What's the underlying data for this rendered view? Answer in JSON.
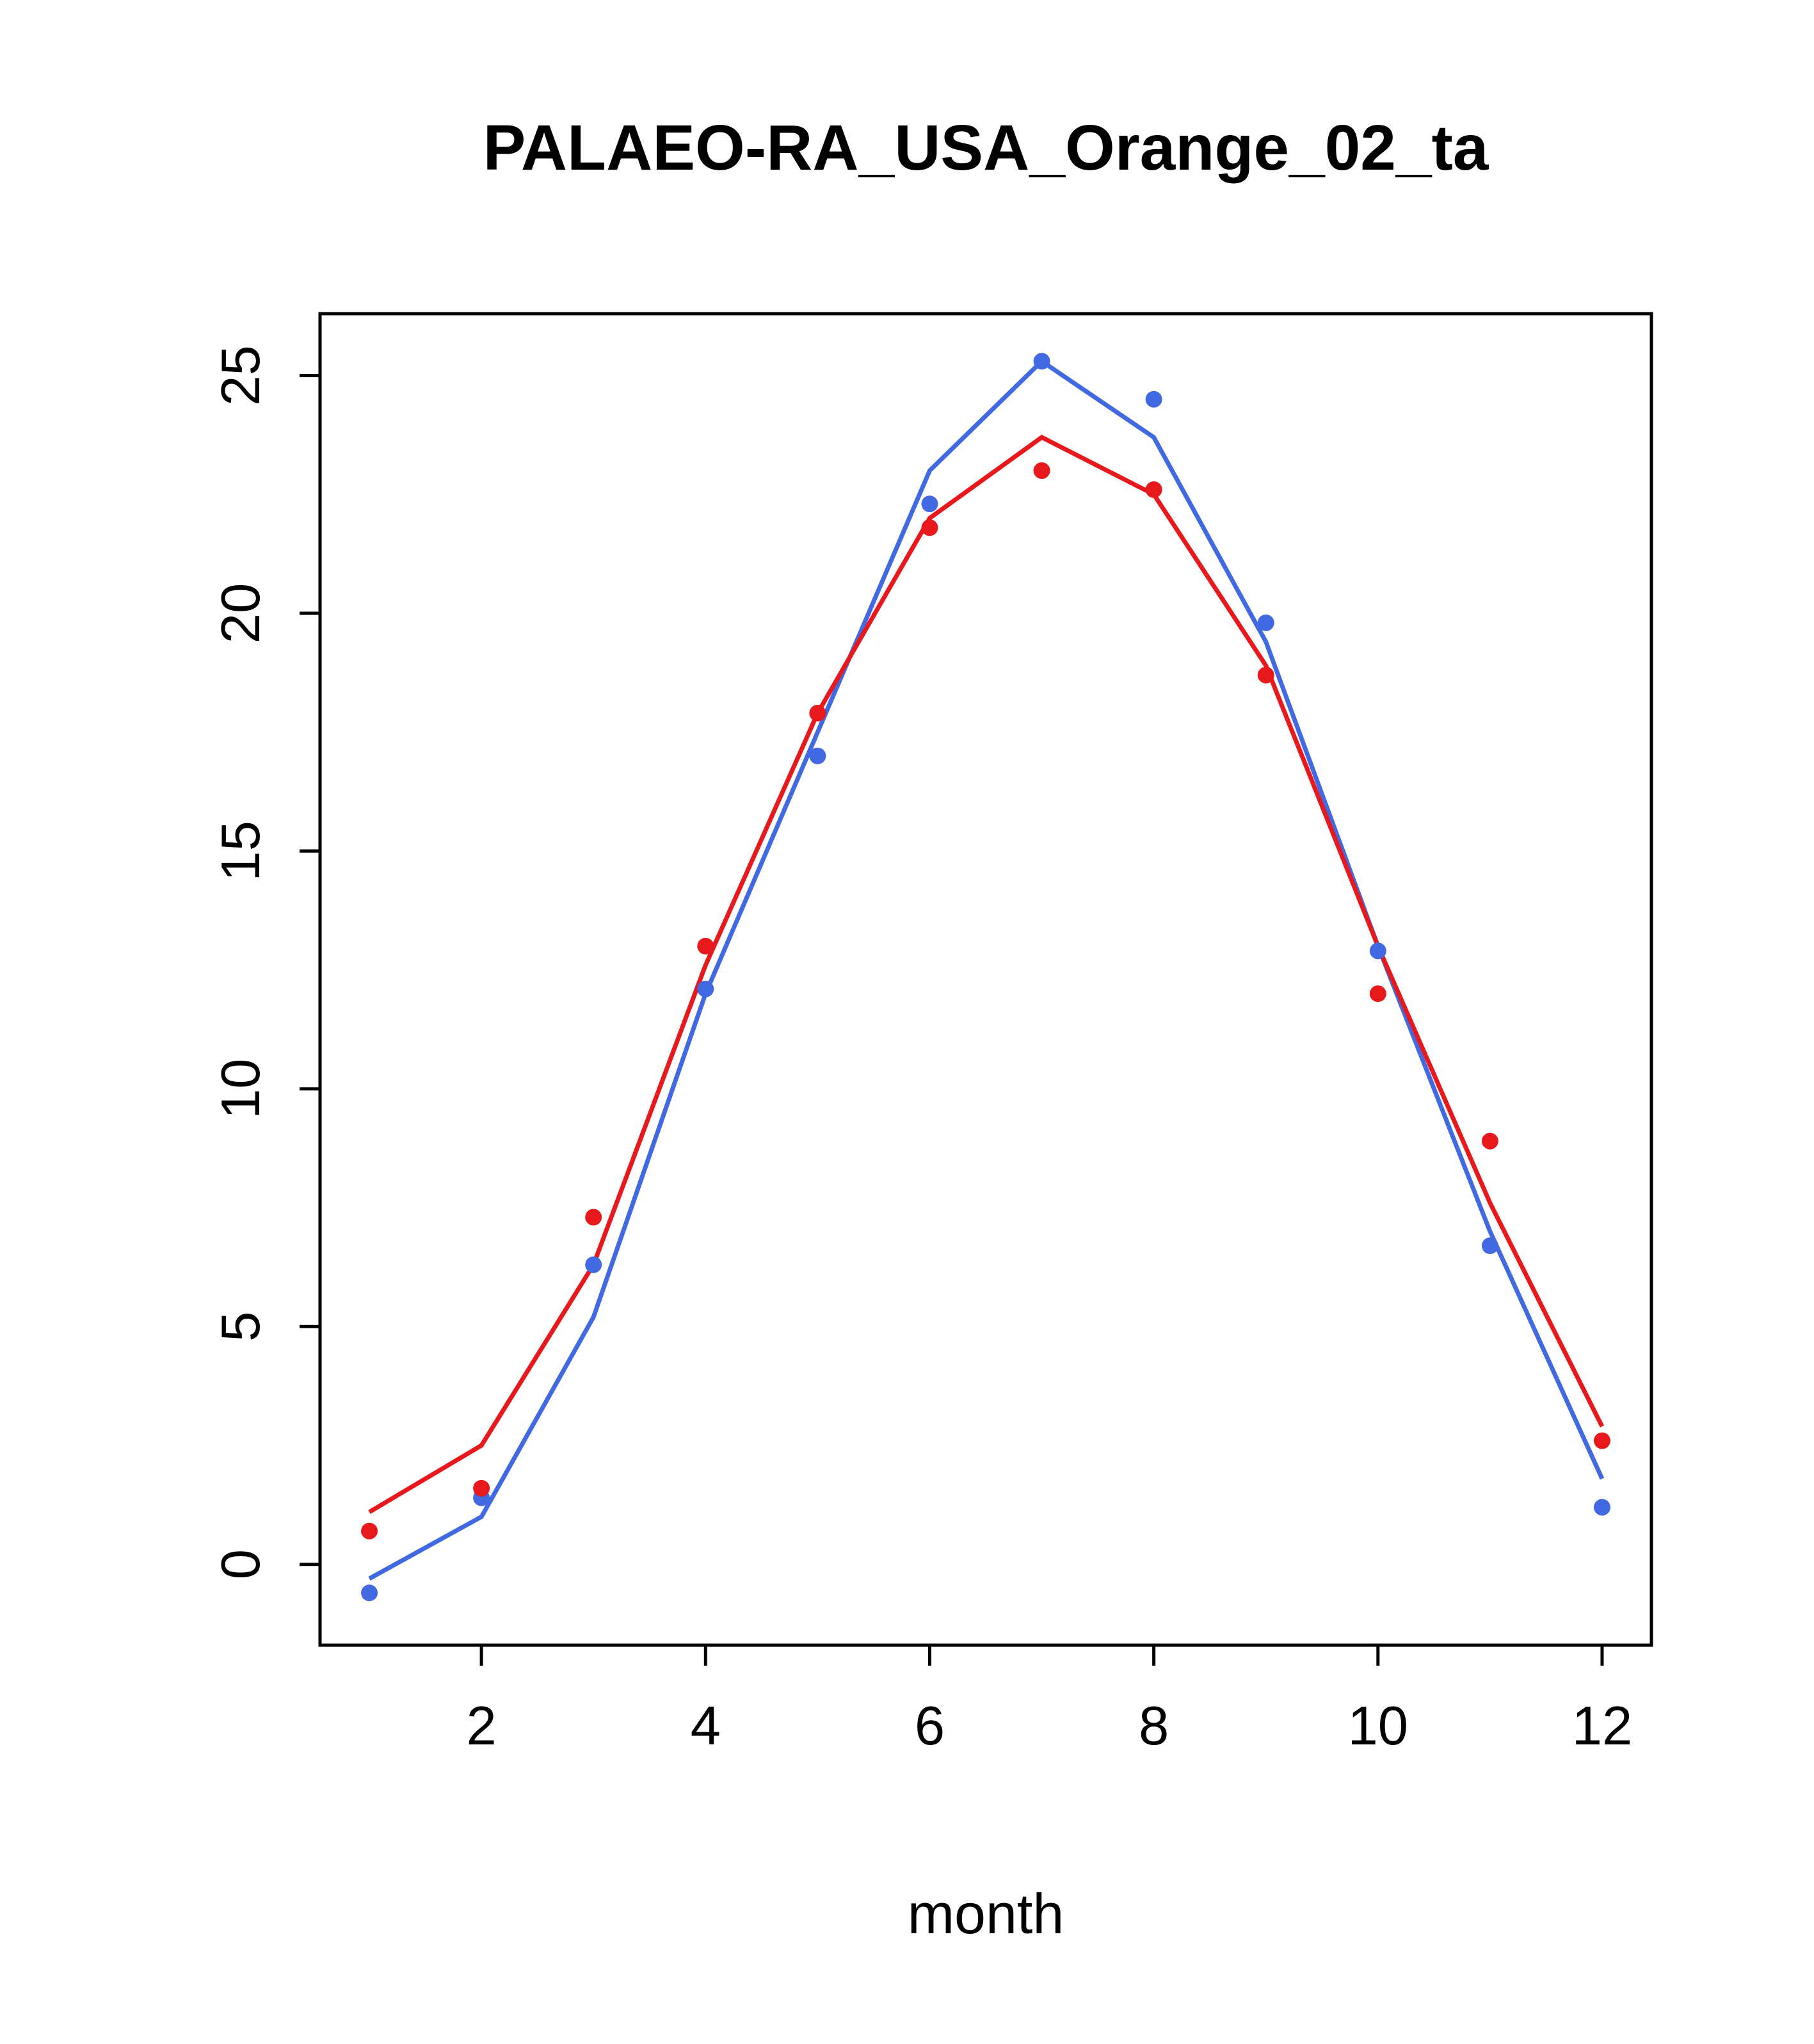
{
  "title": "PALAEO-RA_USA_Orange_02_ta",
  "chart_data": {
    "type": "line",
    "title": "PALAEO-RA_USA_Orange_02_ta",
    "xlabel": "month",
    "ylabel": "",
    "x": [
      1,
      2,
      3,
      4,
      5,
      6,
      7,
      8,
      9,
      10,
      11,
      12
    ],
    "xlim": [
      0.56,
      12.44
    ],
    "ylim": [
      -1.7,
      26.3
    ],
    "xticks": [
      2,
      4,
      6,
      8,
      10,
      12
    ],
    "yticks": [
      0,
      5,
      10,
      15,
      20,
      25
    ],
    "grid": false,
    "legend": "none",
    "colors": {
      "blue": "#4169E1",
      "red": "#E8191C",
      "axis": "#000000",
      "background": "#FFFFFF"
    },
    "series": [
      {
        "name": "blue-line",
        "style": "line",
        "color": "#4169E1",
        "values": [
          -0.3,
          1.0,
          5.2,
          12.0,
          17.5,
          23.0,
          25.3,
          23.7,
          19.4,
          13.0,
          7.0,
          1.8
        ]
      },
      {
        "name": "blue-points",
        "style": "points",
        "color": "#4169E1",
        "values": [
          -0.6,
          1.4,
          6.3,
          12.1,
          17.0,
          22.3,
          25.3,
          24.5,
          19.8,
          12.9,
          6.7,
          1.2
        ]
      },
      {
        "name": "red-line",
        "style": "line",
        "color": "#E8191C",
        "values": [
          1.1,
          2.5,
          6.3,
          12.6,
          17.9,
          22.0,
          23.7,
          22.5,
          18.9,
          13.0,
          7.6,
          2.9
        ]
      },
      {
        "name": "red-points",
        "style": "points",
        "color": "#E8191C",
        "values": [
          0.7,
          1.6,
          7.3,
          13.0,
          17.9,
          21.8,
          23.0,
          22.6,
          18.7,
          12.0,
          8.9,
          2.6
        ]
      }
    ]
  }
}
